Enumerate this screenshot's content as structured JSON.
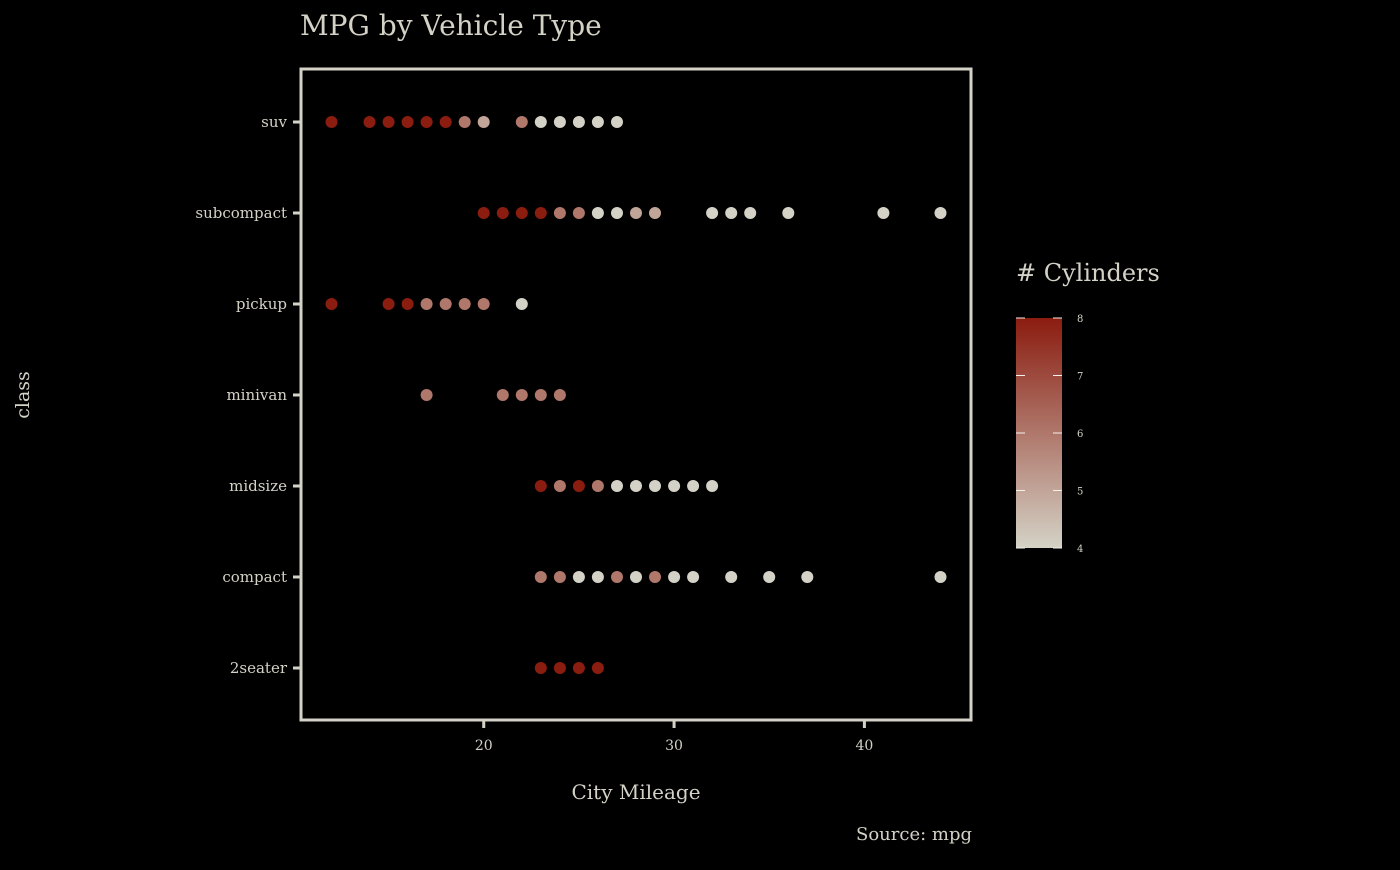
{
  "chart_data": {
    "type": "scatter",
    "title": "MPG by Vehicle Type",
    "xlabel": "City Mileage",
    "ylabel": "class",
    "caption": "Source: mpg",
    "xlim": [
      10.4,
      45.6
    ],
    "x_ticks": [
      20,
      30,
      40
    ],
    "categories": [
      "2seater",
      "compact",
      "midsize",
      "minivan",
      "pickup",
      "subcompact",
      "suv"
    ],
    "legend": {
      "title": "# Cylinders",
      "placement": "right",
      "min": 4,
      "max": 8,
      "ticks": [
        4,
        5,
        6,
        7,
        8
      ],
      "color_low": "#d4d2c6",
      "color_high": "#8b1c10"
    },
    "colors": {
      "background": "#000000",
      "panel_border": "#d4d2c6",
      "text": "#d4d2c6"
    },
    "points": [
      {
        "class": "2seater",
        "cty": 23,
        "cyl": 8
      },
      {
        "class": "2seater",
        "cty": 24,
        "cyl": 8
      },
      {
        "class": "2seater",
        "cty": 25,
        "cyl": 8
      },
      {
        "class": "2seater",
        "cty": 26,
        "cyl": 8
      },
      {
        "class": "compact",
        "cty": 23,
        "cyl": 6
      },
      {
        "class": "compact",
        "cty": 24,
        "cyl": 6
      },
      {
        "class": "compact",
        "cty": 25,
        "cyl": 4
      },
      {
        "class": "compact",
        "cty": 26,
        "cyl": 4
      },
      {
        "class": "compact",
        "cty": 27,
        "cyl": 6
      },
      {
        "class": "compact",
        "cty": 28,
        "cyl": 4
      },
      {
        "class": "compact",
        "cty": 29,
        "cyl": 6
      },
      {
        "class": "compact",
        "cty": 30,
        "cyl": 4
      },
      {
        "class": "compact",
        "cty": 31,
        "cyl": 4
      },
      {
        "class": "compact",
        "cty": 33,
        "cyl": 4
      },
      {
        "class": "compact",
        "cty": 35,
        "cyl": 4
      },
      {
        "class": "compact",
        "cty": 37,
        "cyl": 4
      },
      {
        "class": "compact",
        "cty": 44,
        "cyl": 4
      },
      {
        "class": "midsize",
        "cty": 23,
        "cyl": 8
      },
      {
        "class": "midsize",
        "cty": 24,
        "cyl": 6
      },
      {
        "class": "midsize",
        "cty": 25,
        "cyl": 8
      },
      {
        "class": "midsize",
        "cty": 26,
        "cyl": 6
      },
      {
        "class": "midsize",
        "cty": 27,
        "cyl": 4
      },
      {
        "class": "midsize",
        "cty": 28,
        "cyl": 4
      },
      {
        "class": "midsize",
        "cty": 29,
        "cyl": 4
      },
      {
        "class": "midsize",
        "cty": 30,
        "cyl": 4
      },
      {
        "class": "midsize",
        "cty": 31,
        "cyl": 4
      },
      {
        "class": "midsize",
        "cty": 32,
        "cyl": 4
      },
      {
        "class": "minivan",
        "cty": 17,
        "cyl": 6
      },
      {
        "class": "minivan",
        "cty": 21,
        "cyl": 6
      },
      {
        "class": "minivan",
        "cty": 22,
        "cyl": 6
      },
      {
        "class": "minivan",
        "cty": 23,
        "cyl": 6
      },
      {
        "class": "minivan",
        "cty": 24,
        "cyl": 6
      },
      {
        "class": "pickup",
        "cty": 12,
        "cyl": 8
      },
      {
        "class": "pickup",
        "cty": 15,
        "cyl": 8
      },
      {
        "class": "pickup",
        "cty": 16,
        "cyl": 8
      },
      {
        "class": "pickup",
        "cty": 17,
        "cyl": 6
      },
      {
        "class": "pickup",
        "cty": 18,
        "cyl": 6
      },
      {
        "class": "pickup",
        "cty": 19,
        "cyl": 6
      },
      {
        "class": "pickup",
        "cty": 20,
        "cyl": 6
      },
      {
        "class": "pickup",
        "cty": 22,
        "cyl": 4
      },
      {
        "class": "subcompact",
        "cty": 20,
        "cyl": 8
      },
      {
        "class": "subcompact",
        "cty": 21,
        "cyl": 8
      },
      {
        "class": "subcompact",
        "cty": 22,
        "cyl": 8
      },
      {
        "class": "subcompact",
        "cty": 23,
        "cyl": 8
      },
      {
        "class": "subcompact",
        "cty": 24,
        "cyl": 6
      },
      {
        "class": "subcompact",
        "cty": 25,
        "cyl": 6
      },
      {
        "class": "subcompact",
        "cty": 26,
        "cyl": 4
      },
      {
        "class": "subcompact",
        "cty": 27,
        "cyl": 4
      },
      {
        "class": "subcompact",
        "cty": 28,
        "cyl": 5
      },
      {
        "class": "subcompact",
        "cty": 29,
        "cyl": 5
      },
      {
        "class": "subcompact",
        "cty": 32,
        "cyl": 4
      },
      {
        "class": "subcompact",
        "cty": 33,
        "cyl": 4
      },
      {
        "class": "subcompact",
        "cty": 34,
        "cyl": 4
      },
      {
        "class": "subcompact",
        "cty": 36,
        "cyl": 4
      },
      {
        "class": "subcompact",
        "cty": 41,
        "cyl": 4
      },
      {
        "class": "subcompact",
        "cty": 44,
        "cyl": 4
      },
      {
        "class": "suv",
        "cty": 12,
        "cyl": 8
      },
      {
        "class": "suv",
        "cty": 14,
        "cyl": 8
      },
      {
        "class": "suv",
        "cty": 15,
        "cyl": 8
      },
      {
        "class": "suv",
        "cty": 16,
        "cyl": 8
      },
      {
        "class": "suv",
        "cty": 17,
        "cyl": 8
      },
      {
        "class": "suv",
        "cty": 18,
        "cyl": 8
      },
      {
        "class": "suv",
        "cty": 19,
        "cyl": 6
      },
      {
        "class": "suv",
        "cty": 20,
        "cyl": 5
      },
      {
        "class": "suv",
        "cty": 22,
        "cyl": 6
      },
      {
        "class": "suv",
        "cty": 23,
        "cyl": 4
      },
      {
        "class": "suv",
        "cty": 24,
        "cyl": 4
      },
      {
        "class": "suv",
        "cty": 25,
        "cyl": 4
      },
      {
        "class": "suv",
        "cty": 26,
        "cyl": 4
      },
      {
        "class": "suv",
        "cty": 27,
        "cyl": 4
      }
    ]
  }
}
